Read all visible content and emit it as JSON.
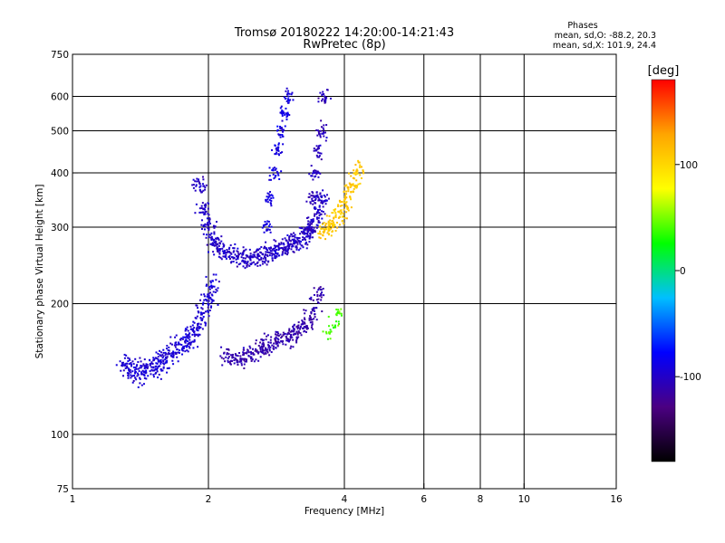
{
  "header": {
    "title_line1": "Tromsø 20180222 14:20:00-14:21:43",
    "title_line2": "RwPretec (8p)",
    "phase_title": "Phases",
    "phase_stats_o": "mean, sd,O: -88.2, 20.3",
    "phase_stats_x": "mean, sd,X: 101.9, 24.4"
  },
  "chart_data": {
    "type": "scatter",
    "xlabel": "Frequency [MHz]",
    "ylabel": "Stationary phase Virtual Height [km]",
    "x_scale": "log",
    "y_scale": "log",
    "xlim": [
      1,
      16
    ],
    "ylim": [
      75,
      750
    ],
    "x_ticks": [
      1,
      2,
      4,
      6,
      8,
      10,
      16
    ],
    "x_tick_labels": [
      "1",
      "2",
      "4",
      "6",
      "8",
      "10",
      "16"
    ],
    "x_gridlines": [
      2,
      4,
      6,
      8,
      10
    ],
    "y_ticks": [
      75,
      100,
      200,
      300,
      400,
      500,
      600,
      750
    ],
    "y_tick_labels": [
      "75",
      "100",
      "200",
      "300",
      "400",
      "500",
      "600",
      "750"
    ],
    "y_gridlines": [
      100,
      200,
      300,
      400,
      500,
      600
    ],
    "grid": true,
    "colorbar": {
      "label": "[deg]",
      "range": [
        -180,
        180
      ],
      "ticks": [
        100,
        0,
        -100
      ],
      "tick_labels": [
        "100",
        "0",
        "-100"
      ],
      "colors": [
        "#000000",
        "#4b0082",
        "#0000ff",
        "#00bfff",
        "#00ff00",
        "#ffff00",
        "#ffa500",
        "#ff0000"
      ]
    },
    "point_series": [
      {
        "x": [
          1.3,
          1.35,
          1.4,
          1.45,
          1.5,
          1.55,
          1.6,
          1.65,
          1.7,
          1.75,
          1.8,
          1.85,
          1.9,
          1.95,
          2.0,
          2.05
        ],
        "y": [
          145,
          140,
          138,
          140,
          142,
          145,
          148,
          150,
          155,
          160,
          165,
          170,
          180,
          190,
          205,
          220
        ],
        "phase": -95,
        "spread": 0.06,
        "n": 28
      },
      {
        "x": [
          1.9,
          1.95,
          2.0,
          2.05,
          2.1,
          2.2,
          2.3,
          2.4,
          2.5,
          2.6,
          2.7,
          2.8,
          2.9,
          3.0,
          3.1,
          3.2,
          3.3,
          3.4,
          3.5,
          3.55
        ],
        "y": [
          380,
          330,
          300,
          280,
          270,
          262,
          258,
          255,
          255,
          257,
          260,
          262,
          265,
          270,
          275,
          280,
          290,
          300,
          320,
          350
        ],
        "phase": -100,
        "spread": 0.05,
        "n": 32
      },
      {
        "x": [
          2.7,
          2.75,
          2.8,
          2.85,
          2.9,
          2.95,
          3.0
        ],
        "y": [
          300,
          350,
          400,
          450,
          500,
          550,
          600
        ],
        "phase": -90,
        "spread": 0.04,
        "n": 22
      },
      {
        "x": [
          3.35,
          3.4,
          3.45,
          3.5,
          3.55,
          3.6
        ],
        "y": [
          300,
          350,
          400,
          450,
          500,
          600
        ],
        "phase": -105,
        "spread": 0.04,
        "n": 24
      },
      {
        "x": [
          2.2,
          2.3,
          2.4,
          2.5,
          2.6,
          2.7,
          2.8,
          2.9,
          3.0,
          3.1,
          3.2,
          3.3,
          3.4,
          3.5
        ],
        "y": [
          150,
          148,
          150,
          153,
          157,
          160,
          163,
          165,
          168,
          170,
          175,
          180,
          190,
          210
        ],
        "phase": -110,
        "spread": 0.05,
        "n": 26
      },
      {
        "x": [
          3.6,
          3.7,
          3.8,
          3.9,
          4.0,
          4.1,
          4.2,
          4.3
        ],
        "y": [
          295,
          300,
          310,
          320,
          340,
          360,
          380,
          410
        ],
        "phase": 110,
        "spread": 0.05,
        "n": 24
      },
      {
        "x": [
          3.7,
          3.8,
          3.9
        ],
        "y": [
          170,
          180,
          190
        ],
        "phase": 40,
        "spread": 0.04,
        "n": 12
      }
    ]
  }
}
